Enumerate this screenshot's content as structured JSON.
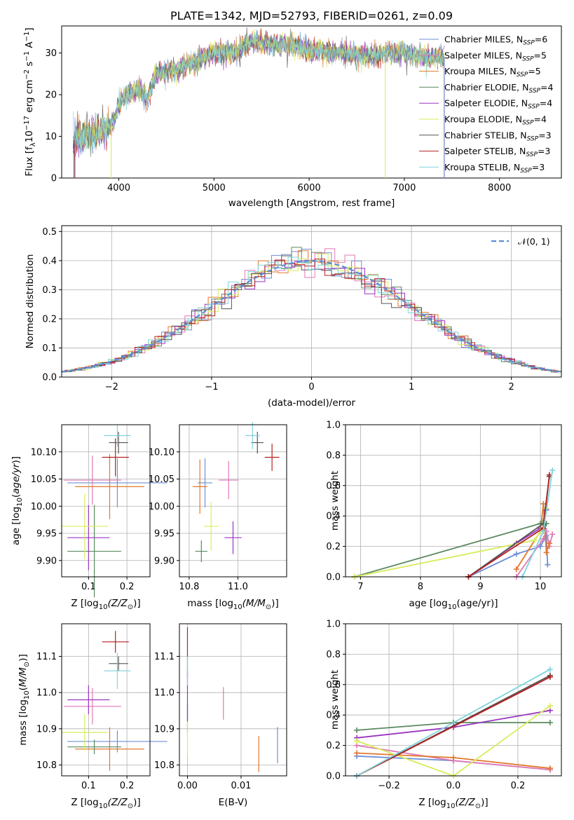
{
  "colors": {
    "Chabrier MILES": "#6f8fd6",
    "Salpeter MILES": "#e079b6",
    "Kroupa MILES": "#e2782d",
    "Chabrier ELODIE": "#5b8a5f",
    "Salpeter ELODIE": "#9a35c0",
    "Kroupa ELODIE": "#d8ec5a",
    "Chabrier STELIB": "#555555",
    "Salpeter STELIB": "#b52020",
    "Kroupa STELIB": "#7fd4dd"
  },
  "chart_data": [
    {
      "type": "line",
      "title": "PLATE=1342, MJD=52793, FIBERID=0261, z=0.09",
      "xlabel": "wavelength [Angstrom, rest frame]",
      "ylabel": "Flux [f_λ 10^-17 erg cm^-2 s^-1 A^-1]",
      "xlim": [
        3400,
        8650
      ],
      "ylim": [
        0,
        36.5
      ],
      "xticks": [
        "4000",
        "5000",
        "6000",
        "7000",
        "8000"
      ],
      "yticks": [
        "0",
        "10",
        "20",
        "30"
      ],
      "legend": "upper right",
      "series": [
        {
          "name": "Chabrier MILES",
          "label_main": "Chabrier MILES, N",
          "label_sub": "SSP",
          "label_tail": "=6"
        },
        {
          "name": "Salpeter MILES",
          "label_main": "Salpeter MILES, N",
          "label_sub": "SSP",
          "label_tail": "=5"
        },
        {
          "name": "Kroupa MILES",
          "label_main": "Kroupa MILES, N",
          "label_sub": "SSP",
          "label_tail": "=5"
        },
        {
          "name": "Chabrier ELODIE",
          "label_main": "Chabrier ELODIE, N",
          "label_sub": "SSP",
          "label_tail": "=4"
        },
        {
          "name": "Salpeter ELODIE",
          "label_main": "Salpeter ELODIE, N",
          "label_sub": "SSP",
          "label_tail": "=4"
        },
        {
          "name": "Kroupa ELODIE",
          "label_main": "Kroupa ELODIE, N",
          "label_sub": "SSP",
          "label_tail": "=4"
        },
        {
          "name": "Chabrier STELIB",
          "label_main": "Chabrier STELIB, N",
          "label_sub": "SSP",
          "label_tail": "=3"
        },
        {
          "name": "Salpeter STELIB",
          "label_main": "Salpeter STELIB, N",
          "label_sub": "SSP",
          "label_tail": "=3"
        },
        {
          "name": "Kroupa STELIB",
          "label_main": "Kroupa STELIB, N",
          "label_sub": "SSP",
          "label_tail": "=3"
        }
      ],
      "spectrum_trend": {
        "x": [
          3500,
          3650,
          3750,
          3850,
          3950,
          4000,
          4100,
          4200,
          4300,
          4400,
          4600,
          4800,
          5000,
          5200,
          5400,
          5600,
          5800,
          6000,
          6200,
          6400,
          6600,
          6800,
          7000,
          7200,
          7400
        ],
        "y": [
          9,
          10,
          11,
          11,
          13,
          18,
          20,
          21,
          19,
          25,
          26,
          28,
          30,
          30,
          33,
          32,
          32,
          31,
          30,
          30,
          29,
          30,
          30,
          29,
          29
        ]
      },
      "spectrum_segments": [
        {
          "series": "Salpeter STELIB",
          "x": [
            3530,
            7420
          ]
        },
        {
          "series": "Kroupa ELODIE",
          "x": [
            3920,
            6800
          ]
        },
        {
          "series": "Kroupa MILES",
          "x": [
            3540,
            7420
          ]
        },
        {
          "series": "Chabrier MILES",
          "x": [
            3540,
            7420
          ]
        }
      ]
    },
    {
      "type": "histogram",
      "xlabel": "(data-model)/error",
      "ylabel": "Normed distribution",
      "xlim": [
        -2.5,
        2.5
      ],
      "ylim": [
        0,
        0.52
      ],
      "xticks": [
        "−2",
        "−1",
        "0",
        "1",
        "2"
      ],
      "yticks": [
        "0.0",
        "0.1",
        "0.2",
        "0.3",
        "0.4",
        "0.5"
      ],
      "grid": true,
      "legend": "upper right",
      "reference": {
        "name": "N(0,1)",
        "label": "𝒩(0, 1)"
      },
      "bin_width": 0.1
    },
    {
      "type": "scatter",
      "xlabel_main": "Z [log",
      "xlabel_sub": "10",
      "xlabel_tail": "(Z/Z",
      "xlabel_end": ")]",
      "ylabel": "age [log10(age/yr)]",
      "xlim": [
        0.03,
        0.26
      ],
      "ylim": [
        9.87,
        10.15
      ],
      "xticks": [
        "0.1",
        "0.2"
      ],
      "yticks": [
        "9.90",
        "9.95",
        "10.00",
        "10.05",
        "10.10"
      ],
      "points": [
        {
          "series": "Chabrier MILES",
          "x": 0.175,
          "y": 10.043,
          "xerr": 0.13,
          "yerr": 0.045
        },
        {
          "series": "Salpeter MILES",
          "x": 0.11,
          "y": 10.048,
          "xerr": 0.075,
          "yerr": 0.045
        },
        {
          "series": "Kroupa MILES",
          "x": 0.155,
          "y": 10.036,
          "xerr": 0.09,
          "yerr": 0.06
        },
        {
          "series": "Chabrier ELODIE",
          "x": 0.115,
          "y": 9.917,
          "xerr": 0.07,
          "yerr": 0.085
        },
        {
          "series": "Salpeter ELODIE",
          "x": 0.1,
          "y": 9.942,
          "xerr": 0.055,
          "yerr": 0.06
        },
        {
          "series": "Kroupa ELODIE",
          "x": 0.09,
          "y": 9.963,
          "xerr": 0.06,
          "yerr": 0.06
        },
        {
          "series": "Chabrier STELIB",
          "x": 0.178,
          "y": 10.117,
          "xerr": 0.025,
          "yerr": 0.02
        },
        {
          "series": "Salpeter STELIB",
          "x": 0.17,
          "y": 10.09,
          "xerr": 0.035,
          "yerr": 0.035
        },
        {
          "series": "Kroupa STELIB",
          "x": 0.175,
          "y": 10.13,
          "xerr": 0.035,
          "yerr": 0.02
        }
      ]
    },
    {
      "type": "scatter",
      "xlabel_main": "mass [log",
      "xlabel_sub": "10",
      "xlabel_tail": "(M/M",
      "xlabel_end": ")]",
      "xlim": [
        10.76,
        11.2
      ],
      "ylim": [
        9.87,
        10.15
      ],
      "xticks": [
        "10.8",
        "11.0"
      ],
      "yticks": [
        "9.90",
        "9.95",
        "10.00",
        "10.05",
        "10.10"
      ],
      "points": [
        {
          "series": "Chabrier MILES",
          "x": 10.865,
          "y": 10.043,
          "xerr": 0.03,
          "yerr": 0.045
        },
        {
          "series": "Salpeter MILES",
          "x": 10.962,
          "y": 10.048,
          "xerr": 0.04,
          "yerr": 0.035
        },
        {
          "series": "Kroupa MILES",
          "x": 10.844,
          "y": 10.036,
          "xerr": 0.03,
          "yerr": 0.05
        },
        {
          "series": "Chabrier ELODIE",
          "x": 10.85,
          "y": 9.917,
          "xerr": 0.025,
          "yerr": 0.02
        },
        {
          "series": "Salpeter ELODIE",
          "x": 10.98,
          "y": 9.942,
          "xerr": 0.035,
          "yerr": 0.03
        },
        {
          "series": "Kroupa ELODIE",
          "x": 10.89,
          "y": 9.963,
          "xerr": 0.03,
          "yerr": 0.045
        },
        {
          "series": "Chabrier STELIB",
          "x": 11.08,
          "y": 10.117,
          "xerr": 0.025,
          "yerr": 0.02
        },
        {
          "series": "Salpeter STELIB",
          "x": 11.14,
          "y": 10.09,
          "xerr": 0.03,
          "yerr": 0.025
        },
        {
          "series": "Kroupa STELIB",
          "x": 11.06,
          "y": 10.13,
          "xerr": 0.03,
          "yerr": 0.025
        }
      ]
    },
    {
      "type": "line",
      "xlabel_main": "age  [log",
      "xlabel_sub": "10",
      "xlabel_tail": "(age/yr)]",
      "ylabel": "mass weight",
      "xlim": [
        6.75,
        10.35
      ],
      "ylim": [
        0,
        1.0
      ],
      "xticks": [
        "7",
        "8",
        "9",
        "10"
      ],
      "yticks": [
        "0.0",
        "0.2",
        "0.4",
        "0.6",
        "0.8",
        "1.0"
      ],
      "grid": true,
      "series": [
        {
          "series": "Chabrier MILES",
          "x": [
            8.8,
            9.6,
            10.0,
            10.1,
            10.12
          ],
          "y": [
            0.0,
            0.15,
            0.2,
            0.27,
            0.08
          ]
        },
        {
          "series": "Salpeter MILES",
          "x": [
            9.6,
            10.05,
            10.1,
            10.15,
            10.2
          ],
          "y": [
            0.0,
            0.25,
            0.3,
            0.2,
            0.28
          ]
        },
        {
          "series": "Kroupa MILES",
          "x": [
            9.6,
            10.0,
            10.05,
            10.1,
            10.15
          ],
          "y": [
            0.05,
            0.3,
            0.48,
            0.16,
            0.22
          ]
        },
        {
          "series": "Chabrier ELODIE",
          "x": [
            6.9,
            10.0,
            10.05,
            10.1
          ],
          "y": [
            0.0,
            0.35,
            0.3,
            0.35
          ]
        },
        {
          "series": "Salpeter ELODIE",
          "x": [
            8.8,
            9.6,
            10.0,
            10.1
          ],
          "y": [
            0.0,
            0.22,
            0.32,
            0.44
          ]
        },
        {
          "series": "Kroupa ELODIE",
          "x": [
            6.9,
            9.9,
            10.0,
            10.1
          ],
          "y": [
            0.0,
            0.24,
            0.3,
            0.45
          ]
        },
        {
          "series": "Chabrier STELIB",
          "x": [
            8.8,
            10.05,
            10.15
          ],
          "y": [
            0.0,
            0.35,
            0.66
          ]
        },
        {
          "series": "Salpeter STELIB",
          "x": [
            8.8,
            10.05,
            10.15
          ],
          "y": [
            0.0,
            0.32,
            0.67
          ]
        },
        {
          "series": "Kroupa STELIB",
          "x": [
            9.7,
            10.05,
            10.2
          ],
          "y": [
            0.0,
            0.3,
            0.7
          ]
        }
      ]
    },
    {
      "type": "scatter",
      "xlabel_main": "Z [log",
      "xlabel_sub": "10",
      "xlabel_tail": "(Z/Z",
      "xlabel_end": ")]",
      "ylabel": "mass [log10(M/M⊙)]",
      "xlim": [
        0.03,
        0.26
      ],
      "ylim": [
        10.77,
        11.19
      ],
      "xticks": [
        "0.1",
        "0.2"
      ],
      "yticks": [
        "10.8",
        "10.9",
        "11.0",
        "11.1"
      ],
      "points": [
        {
          "series": "Chabrier MILES",
          "x": 0.175,
          "y": 10.865,
          "xerr": 0.13,
          "yerr": 0.03
        },
        {
          "series": "Salpeter MILES",
          "x": 0.11,
          "y": 10.962,
          "xerr": 0.075,
          "yerr": 0.05
        },
        {
          "series": "Kroupa MILES",
          "x": 0.155,
          "y": 10.844,
          "xerr": 0.09,
          "yerr": 0.06
        },
        {
          "series": "Chabrier ELODIE",
          "x": 0.115,
          "y": 10.85,
          "xerr": 0.07,
          "yerr": 0.02
        },
        {
          "series": "Salpeter ELODIE",
          "x": 0.1,
          "y": 10.98,
          "xerr": 0.055,
          "yerr": 0.04
        },
        {
          "series": "Kroupa ELODIE",
          "x": 0.09,
          "y": 10.89,
          "xerr": 0.06,
          "yerr": 0.05
        },
        {
          "series": "Chabrier STELIB",
          "x": 0.178,
          "y": 11.08,
          "xerr": 0.025,
          "yerr": 0.02
        },
        {
          "series": "Salpeter STELIB",
          "x": 0.17,
          "y": 11.14,
          "xerr": 0.035,
          "yerr": 0.03
        },
        {
          "series": "Kroupa STELIB",
          "x": 0.175,
          "y": 11.06,
          "xerr": 0.035,
          "yerr": 0.05
        }
      ]
    },
    {
      "type": "scatter",
      "xlabel": "E(B-V)",
      "xlim": [
        -0.0015,
        0.0185
      ],
      "ylim": [
        10.77,
        11.19
      ],
      "xticks": [
        "0.00",
        "0.01"
      ],
      "yticks": [
        "10.8",
        "10.9",
        "11.0",
        "11.1"
      ],
      "points": [
        {
          "series": "Chabrier MILES",
          "x": 0.0168,
          "y": 10.855,
          "yerr": 0.05
        },
        {
          "series": "Salpeter MILES",
          "x": 0.0067,
          "y": 10.97,
          "yerr": 0.045
        },
        {
          "series": "Kroupa MILES",
          "x": 0.0133,
          "y": 10.83,
          "yerr": 0.05
        },
        {
          "series": "Chabrier ELODIE",
          "x": 0.0,
          "y": 10.93,
          "yerr": 0.04
        },
        {
          "series": "Salpeter ELODIE",
          "x": 0.0,
          "y": 10.99,
          "yerr": 0.07
        },
        {
          "series": "Kroupa ELODIE",
          "x": 0.0,
          "y": 10.87,
          "yerr": 0.05
        },
        {
          "series": "Chabrier STELIB",
          "x": 0.0,
          "y": 11.07,
          "yerr": 0.03
        },
        {
          "series": "Salpeter STELIB",
          "x": 0.0,
          "y": 11.14,
          "yerr": 0.04
        },
        {
          "series": "Kroupa STELIB",
          "x": 0.0,
          "y": 11.06,
          "yerr": 0.04
        }
      ]
    },
    {
      "type": "line",
      "xlabel_main": "Z [log",
      "xlabel_sub": "10",
      "xlabel_tail": "(Z/Z",
      "xlabel_end": ")]",
      "ylabel": "mass weight",
      "xlim": [
        -0.335,
        0.335
      ],
      "ylim": [
        0,
        1.0
      ],
      "xticks": [
        "−0.2",
        "0.0",
        "0.2"
      ],
      "yticks": [
        "0.0",
        "0.2",
        "0.4",
        "0.6",
        "0.8",
        "1.0"
      ],
      "grid": true,
      "series": [
        {
          "series": "Chabrier MILES",
          "x": [
            -0.3,
            0.0,
            0.3
          ],
          "y": [
            0.13,
            0.1,
            0.04
          ]
        },
        {
          "series": "Salpeter MILES",
          "x": [
            -0.3,
            0.0,
            0.3
          ],
          "y": [
            0.2,
            0.1,
            0.04
          ]
        },
        {
          "series": "Kroupa MILES",
          "x": [
            -0.3,
            0.0,
            0.3
          ],
          "y": [
            0.15,
            0.12,
            0.05
          ]
        },
        {
          "series": "Chabrier ELODIE",
          "x": [
            -0.3,
            0.0,
            0.3
          ],
          "y": [
            0.3,
            0.35,
            0.35
          ]
        },
        {
          "series": "Salpeter ELODIE",
          "x": [
            -0.3,
            0.0,
            0.3
          ],
          "y": [
            0.25,
            0.32,
            0.43
          ]
        },
        {
          "series": "Kroupa ELODIE",
          "x": [
            -0.3,
            0.0,
            0.3
          ],
          "y": [
            0.23,
            0.0,
            0.46
          ]
        },
        {
          "series": "Chabrier STELIB",
          "x": [
            -0.3,
            0.3
          ],
          "y": [
            0.0,
            0.66
          ]
        },
        {
          "series": "Salpeter STELIB",
          "x": [
            -0.3,
            0.3
          ],
          "y": [
            0.0,
            0.65
          ]
        },
        {
          "series": "Kroupa STELIB",
          "x": [
            -0.3,
            0.3
          ],
          "y": [
            0.0,
            0.7
          ]
        }
      ]
    }
  ]
}
